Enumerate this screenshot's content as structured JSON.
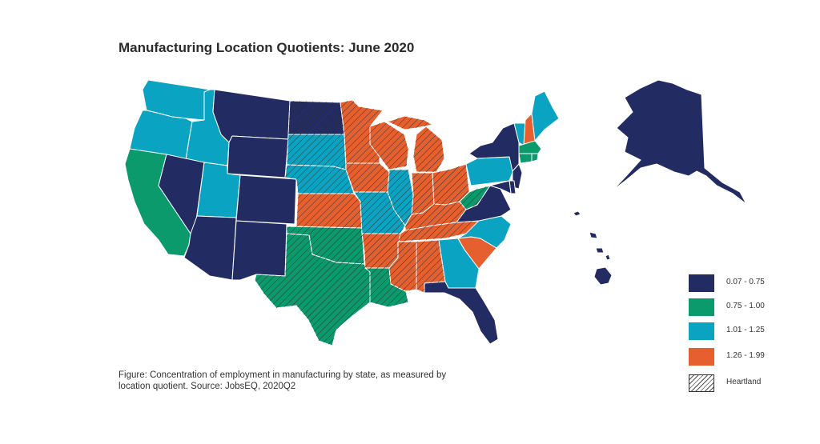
{
  "title": "Manufacturing Location Quotients: June 2020",
  "caption": "Figure: Concentration of employment in manufacturing by state, as measured by location quotient. Source: JobsEQ, 2020Q2",
  "colors": {
    "c1": "#232b63",
    "c2": "#0a9a6c",
    "c3": "#0aa3c2",
    "c4": "#e5602e",
    "hatch": "#333333",
    "border": "#ffffff"
  },
  "legend": [
    {
      "label": "0.07 - 0.75",
      "class": "c1"
    },
    {
      "label": "0.75 - 1.00",
      "class": "c2"
    },
    {
      "label": "1.01 - 1.25",
      "class": "c3"
    },
    {
      "label": "1.26 - 1.99",
      "class": "c4"
    },
    {
      "label": "Heartland",
      "class": "hatch"
    }
  ],
  "states": {
    "WA": {
      "class": "c3",
      "heartland": false
    },
    "OR": {
      "class": "c3",
      "heartland": false
    },
    "CA": {
      "class": "c2",
      "heartland": false
    },
    "NV": {
      "class": "c1",
      "heartland": false
    },
    "ID": {
      "class": "c3",
      "heartland": false
    },
    "MT": {
      "class": "c1",
      "heartland": false
    },
    "WY": {
      "class": "c1",
      "heartland": false
    },
    "UT": {
      "class": "c3",
      "heartland": false
    },
    "AZ": {
      "class": "c1",
      "heartland": false
    },
    "CO": {
      "class": "c1",
      "heartland": false
    },
    "NM": {
      "class": "c1",
      "heartland": false
    },
    "ND": {
      "class": "c1",
      "heartland": true
    },
    "SD": {
      "class": "c3",
      "heartland": true
    },
    "NE": {
      "class": "c3",
      "heartland": true
    },
    "KS": {
      "class": "c4",
      "heartland": true
    },
    "OK": {
      "class": "c2",
      "heartland": true
    },
    "TX": {
      "class": "c2",
      "heartland": true
    },
    "MN": {
      "class": "c4",
      "heartland": true
    },
    "IA": {
      "class": "c4",
      "heartland": true
    },
    "MO": {
      "class": "c3",
      "heartland": true
    },
    "AR": {
      "class": "c4",
      "heartland": true
    },
    "LA": {
      "class": "c2",
      "heartland": true
    },
    "WI": {
      "class": "c4",
      "heartland": true
    },
    "IL": {
      "class": "c3",
      "heartland": true
    },
    "MI": {
      "class": "c4",
      "heartland": true
    },
    "IN": {
      "class": "c4",
      "heartland": true
    },
    "OH": {
      "class": "c4",
      "heartland": true
    },
    "KY": {
      "class": "c4",
      "heartland": true
    },
    "TN": {
      "class": "c4",
      "heartland": true
    },
    "MS": {
      "class": "c4",
      "heartland": true
    },
    "AL": {
      "class": "c4",
      "heartland": true
    },
    "GA": {
      "class": "c3",
      "heartland": false
    },
    "FL": {
      "class": "c1",
      "heartland": false
    },
    "SC": {
      "class": "c4",
      "heartland": false
    },
    "NC": {
      "class": "c3",
      "heartland": false
    },
    "VA": {
      "class": "c1",
      "heartland": false
    },
    "WV": {
      "class": "c2",
      "heartland": true
    },
    "PA": {
      "class": "c3",
      "heartland": false
    },
    "NY": {
      "class": "c1",
      "heartland": false
    },
    "NJ": {
      "class": "c1",
      "heartland": false
    },
    "DE": {
      "class": "c1",
      "heartland": false
    },
    "MD": {
      "class": "c1",
      "heartland": false
    },
    "VT": {
      "class": "c3",
      "heartland": false
    },
    "NH": {
      "class": "c4",
      "heartland": false
    },
    "ME": {
      "class": "c3",
      "heartland": false
    },
    "MA": {
      "class": "c2",
      "heartland": false
    },
    "CT": {
      "class": "c2",
      "heartland": false
    },
    "RI": {
      "class": "c2",
      "heartland": false
    },
    "AK": {
      "class": "c1",
      "heartland": false
    },
    "HI": {
      "class": "c1",
      "heartland": false
    }
  }
}
